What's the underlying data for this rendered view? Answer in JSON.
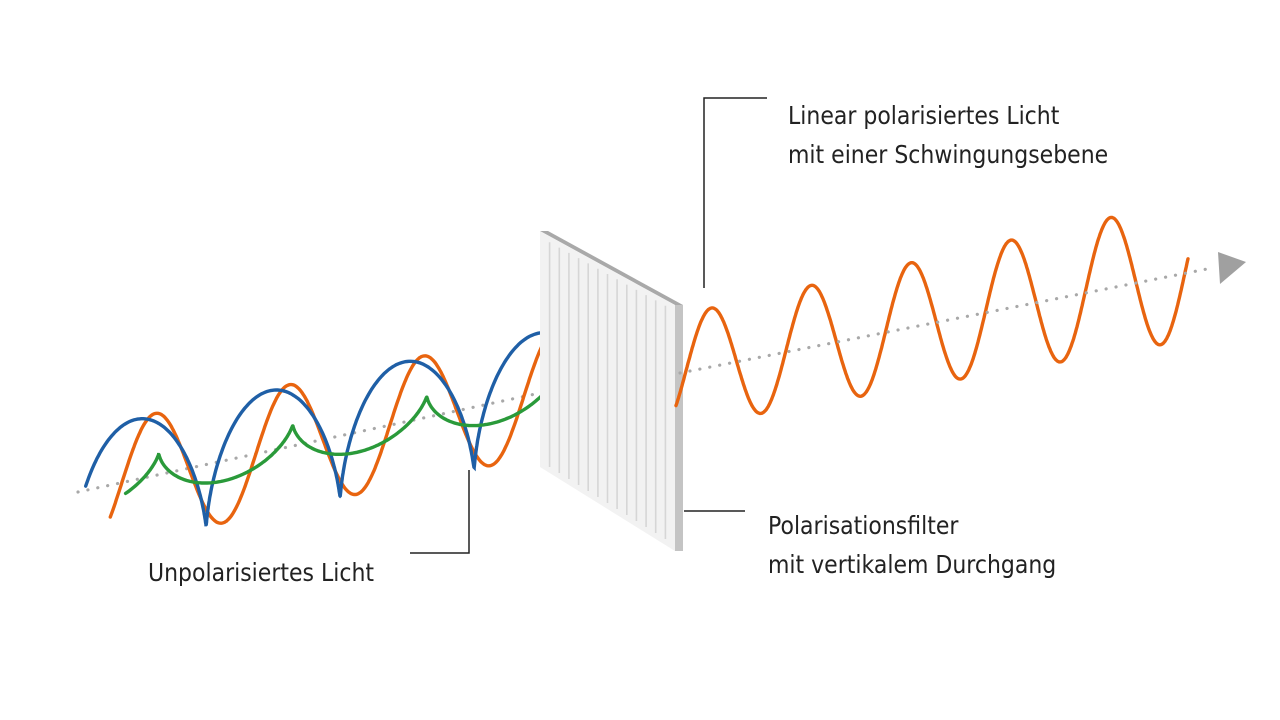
{
  "labels": {
    "linear_polarized": {
      "line1": "Linear polarisiertes Licht",
      "line2": "mit einer Schwingungsebene"
    },
    "filter": {
      "line1": "Polarisationsfilter",
      "line2": "mit vertikalem Durchgang"
    },
    "unpolarized": {
      "line1": "Unpolarisiertes Licht"
    }
  },
  "colors": {
    "orange_wave": "#e8640f",
    "blue_wave": "#1f5fa6",
    "green_wave": "#2a9a3a",
    "axis": "#a8a8a8",
    "arrowhead": "#a0a0a0",
    "leader_line": "#222222",
    "filter_front": "#f2f2f2",
    "filter_top": "#a9a9a9",
    "filter_side": "#c4c4c4",
    "filter_slat": "#d6d6d6"
  }
}
